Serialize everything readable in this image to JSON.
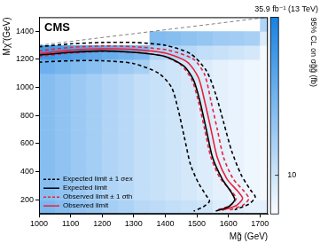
{
  "chart_data": {
    "type": "heatmap",
    "title": "35.9 fb⁻¹ (13 TeV)",
    "x_label": "Mg̃ (GeV)",
    "y_label": "Mχ̃ (GeV)",
    "annotations": [
      "CMS"
    ],
    "xlim": [
      1000,
      1725
    ],
    "xticks": [
      1000,
      1100,
      1200,
      1300,
      1400,
      1500,
      1600,
      1700
    ],
    "ylim": [
      100,
      1500
    ],
    "yticks": [
      200,
      400,
      600,
      800,
      1000,
      1200,
      1400
    ],
    "grid": false,
    "legend": "lower left",
    "cells": {
      "x_edges": [
        1000,
        1050,
        1100,
        1150,
        1200,
        1250,
        1300,
        1350,
        1400,
        1450,
        1500,
        1550,
        1600,
        1650,
        1700,
        1750
      ],
      "y_edges": [
        100,
        200,
        300,
        400,
        500,
        600,
        700,
        800,
        900,
        1000,
        1100,
        1200,
        1300,
        1400,
        1500
      ],
      "z": [
        [
          36,
          31,
          26,
          23,
          19,
          17,
          14,
          13,
          12,
          11,
          10,
          8,
          8,
          7,
          7
        ],
        [
          30,
          26,
          22,
          19,
          16,
          14,
          12,
          11,
          10,
          9,
          8,
          7,
          6.5,
          6,
          5.5
        ],
        [
          30,
          26,
          22,
          19,
          16,
          14,
          12,
          11,
          10,
          9,
          8,
          7,
          6.5,
          6,
          5.5
        ],
        [
          30,
          26,
          22,
          19,
          16,
          14,
          12,
          11,
          10,
          9,
          8,
          7,
          6.5,
          6,
          5.5
        ],
        [
          30,
          26,
          22,
          19,
          16,
          14,
          12,
          11,
          10,
          9,
          8,
          7,
          6.5,
          6,
          5.5
        ],
        [
          30,
          26,
          22,
          19,
          16,
          14,
          12,
          11,
          10,
          9,
          8,
          7,
          6.5,
          6,
          5.5
        ],
        [
          30,
          26,
          22,
          19,
          16,
          14,
          12,
          11,
          10,
          9,
          8,
          7,
          6.5,
          6,
          5.5
        ],
        [
          30,
          26,
          22,
          19,
          16,
          14,
          12,
          11,
          10,
          9,
          8,
          7,
          6.5,
          6,
          5.5
        ],
        [
          30,
          26,
          22,
          19,
          16,
          14,
          12,
          11,
          10,
          9,
          8,
          7,
          6.5,
          6,
          5.5
        ],
        [
          30,
          26,
          22,
          19,
          16,
          14,
          12,
          11,
          10,
          9,
          8,
          7,
          6.5,
          6,
          5.5
        ],
        [
          45,
          39,
          33,
          29,
          24,
          21,
          18,
          11,
          10,
          9,
          8,
          7,
          6.5,
          6,
          5.5
        ],
        [
          90,
          78,
          66,
          57,
          48,
          42,
          36,
          17,
          15,
          14,
          12,
          11,
          10,
          9,
          5.5
        ],
        [
          null,
          null,
          null,
          null,
          null,
          null,
          null,
          33,
          30,
          27,
          24,
          21,
          20,
          18,
          8
        ],
        [
          null,
          null,
          null,
          null,
          null,
          null,
          null,
          null,
          null,
          null,
          null,
          null,
          null,
          null,
          16
        ]
      ]
    },
    "colorbar": {
      "label": "95% CL on σg̃g̃ (fb)",
      "range": [
        5,
        170
      ],
      "ticks": [
        10
      ],
      "log": true
    },
    "series": [
      {
        "color": "#808080",
        "line_style": "dashed",
        "lines": [
          {
            "x": [
              1000,
              1725
            ],
            "y": [
              1300,
              1500
            ]
          }
        ]
      },
      {
        "name": "Expected limit ± 1 σex",
        "color": "#000000",
        "line_style": "dashed",
        "lines": [
          {
            "x": [
              1000,
              1100,
              1200,
              1300,
              1380,
              1420,
              1440,
              1460,
              1480,
              1505,
              1530,
              1540,
              1520,
              1490
            ],
            "y": [
              1180,
              1190,
              1190,
              1170,
              1100,
              1000,
              850,
              650,
              450,
              320,
              230,
              190,
              150,
              120
            ]
          },
          {
            "x": [
              1000,
              1100,
              1200,
              1300,
              1400,
              1480,
              1530,
              1560,
              1585,
              1610,
              1640,
              1670,
              1685,
              1665,
              1620
            ],
            "y": [
              1290,
              1310,
              1320,
              1320,
              1300,
              1240,
              1120,
              950,
              750,
              550,
              380,
              270,
              220,
              170,
              130
            ]
          }
        ]
      },
      {
        "name": "Expected limit",
        "color": "#000000",
        "line_style": "solid",
        "lines": [
          {
            "x": [
              1000,
              1100,
              1200,
              1300,
              1400,
              1460,
              1490,
              1510,
              1530,
              1550,
              1580,
              1610,
              1620,
              1600,
              1560
            ],
            "y": [
              1230,
              1250,
              1260,
              1250,
              1220,
              1150,
              1050,
              900,
              700,
              500,
              350,
              250,
              200,
              150,
              120
            ]
          }
        ]
      },
      {
        "name": "Observed limit ± 1 σth",
        "color": "#e8203a",
        "line_style": "dashed",
        "lines": [
          {
            "x": [
              1000,
              1100,
              1200,
              1300,
              1390,
              1450,
              1485,
              1505,
              1525,
              1545,
              1575,
              1610,
              1625,
              1605,
              1560
            ],
            "y": [
              1220,
              1245,
              1255,
              1250,
              1225,
              1160,
              1050,
              900,
              700,
              500,
              350,
              260,
              210,
              160,
              125
            ]
          },
          {
            "x": [
              1000,
              1100,
              1200,
              1300,
              1410,
              1490,
              1525,
              1545,
              1565,
              1585,
              1615,
              1650,
              1665,
              1645,
              1600
            ],
            "y": [
              1260,
              1285,
              1295,
              1290,
              1265,
              1200,
              1090,
              900,
              700,
              500,
              350,
              260,
              210,
              160,
              125
            ]
          }
        ]
      },
      {
        "name": "Observed limit",
        "color": "#e8203a",
        "line_style": "solid",
        "lines": [
          {
            "x": [
              1000,
              1100,
              1200,
              1300,
              1400,
              1470,
              1505,
              1525,
              1545,
              1565,
              1595,
              1630,
              1645,
              1625,
              1580
            ],
            "y": [
              1240,
              1265,
              1275,
              1270,
              1245,
              1180,
              1070,
              900,
              700,
              500,
              350,
              260,
              210,
              160,
              125
            ]
          }
        ]
      }
    ]
  }
}
